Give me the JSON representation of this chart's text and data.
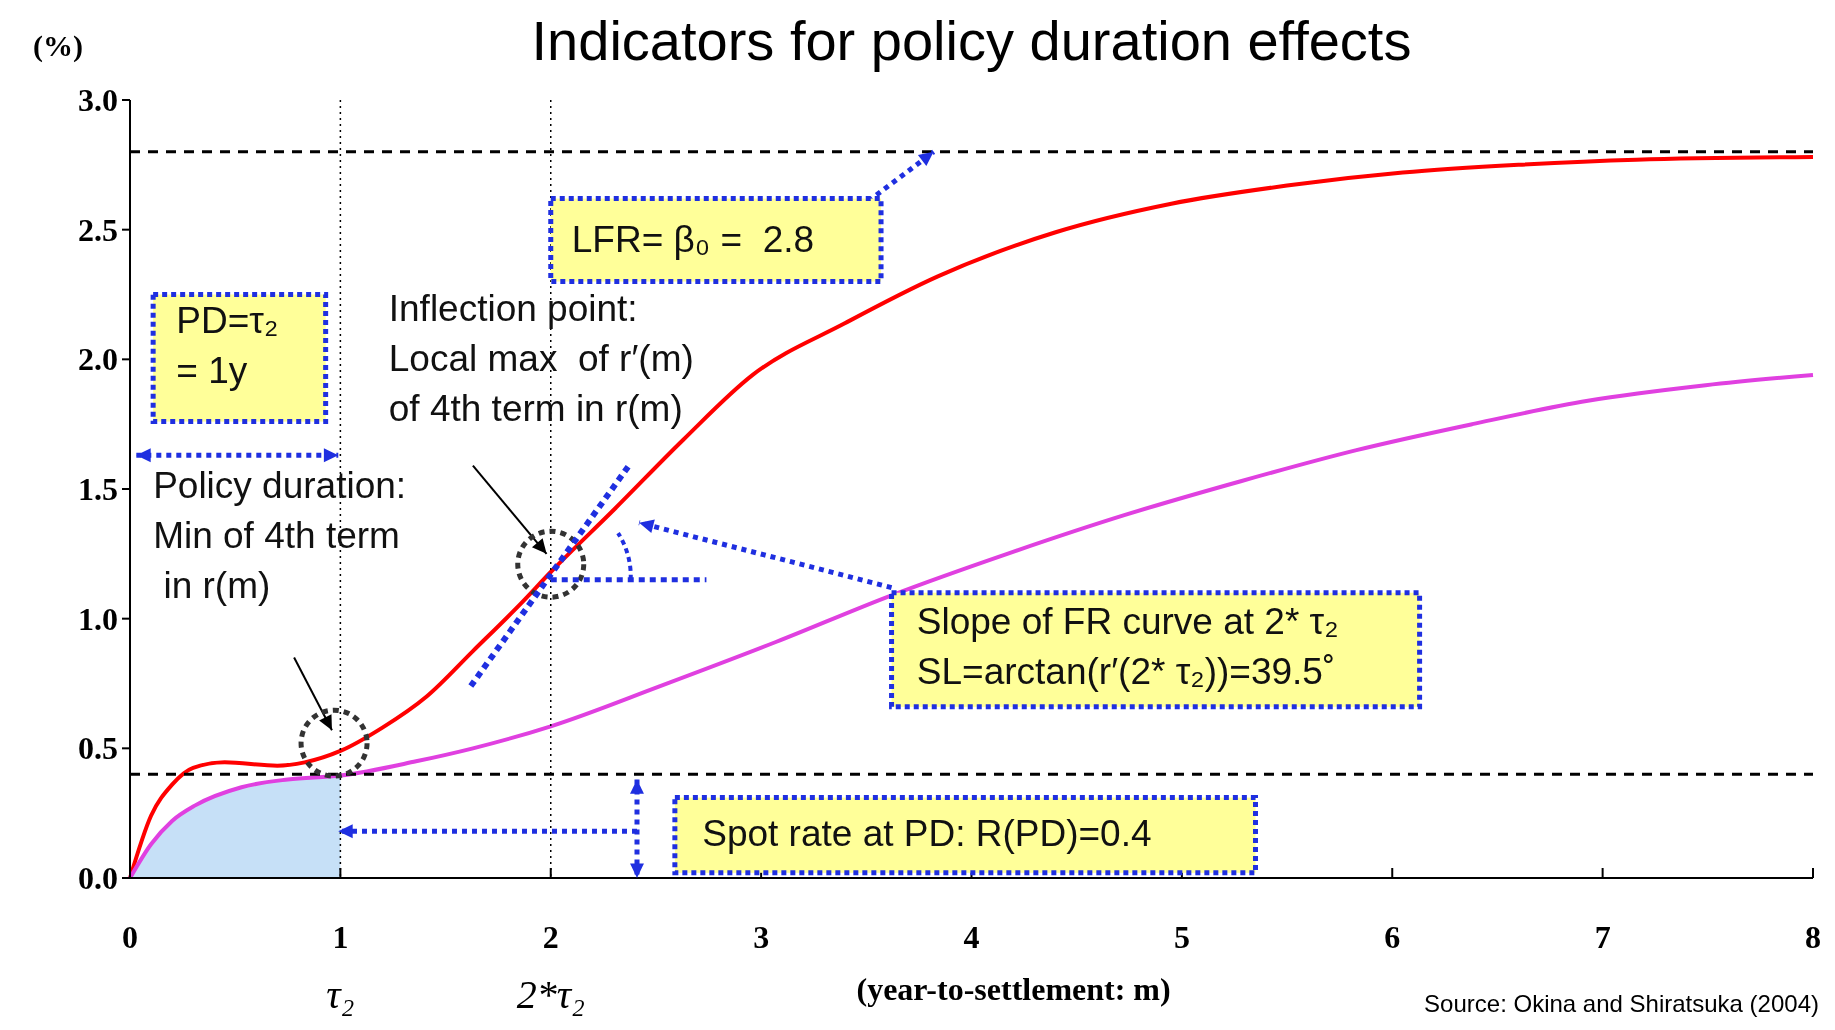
{
  "chart_data": {
    "type": "line",
    "title": "Indicators for policy duration effects",
    "xlabel": "(year-to-settlement: m)",
    "ylabel": "(%)",
    "xlim": [
      0,
      8
    ],
    "xticks": [
      0,
      1,
      2,
      3,
      4,
      5,
      6,
      7,
      8
    ],
    "ylim": [
      0,
      3
    ],
    "yticks": [
      {
        "value": 0,
        "label": "0.0"
      },
      0.5,
      {
        "value": 1,
        "label": "1.0"
      },
      1.5,
      {
        "value": 2,
        "label": "2.0"
      },
      2.5,
      {
        "value": 3,
        "label": "3.0"
      }
    ],
    "series": [
      {
        "type": "area",
        "color": "#c6e0f7",
        "x": [
          0,
          0.1,
          0.2,
          0.31,
          0.53,
          0.75,
          1.0
        ],
        "values": [
          0,
          0.13,
          0.22,
          0.28,
          0.35,
          0.38,
          0.395
        ]
      },
      {
        "color": "#ff0000",
        "x": [
          0,
          0.1,
          0.2,
          0.3,
          0.45,
          0.7,
          0.83,
          1.0,
          1.2,
          1.41,
          1.63,
          1.86,
          2.0,
          2.3,
          2.63,
          2.96,
          3.4,
          3.84,
          4.4,
          4.95,
          5.5,
          6.05,
          6.6,
          7.16,
          8
        ],
        "values": [
          0,
          0.24,
          0.36,
          0.425,
          0.446,
          0.433,
          0.446,
          0.49,
          0.58,
          0.7,
          0.875,
          1.06,
          1.18,
          1.42,
          1.69,
          1.94,
          2.14,
          2.32,
          2.49,
          2.6,
          2.67,
          2.72,
          2.75,
          2.77,
          2.78
        ]
      },
      {
        "color": "#e040e0",
        "x": [
          0,
          0.1,
          0.2,
          0.31,
          0.53,
          0.75,
          1.0,
          1.36,
          1.63,
          2.0,
          2.52,
          3.07,
          3.62,
          4.17,
          4.73,
          5.28,
          5.83,
          6.38,
          6.93,
          7.49,
          8
        ],
        "values": [
          0,
          0.13,
          0.22,
          0.28,
          0.35,
          0.38,
          0.395,
          0.45,
          0.5,
          0.585,
          0.74,
          0.91,
          1.09,
          1.25,
          1.4,
          1.53,
          1.65,
          1.75,
          1.84,
          1.9,
          1.94
        ]
      }
    ],
    "ref_lines": [
      {
        "axis": "y",
        "value": 2.8,
        "color": "#000000",
        "line_style": "dashed"
      },
      {
        "axis": "y",
        "value": 0.4,
        "color": "#000000",
        "line_style": "dashed"
      },
      {
        "axis": "x",
        "value": 1,
        "label": "τ₂",
        "color": "#000000",
        "line_style": "dotted"
      },
      {
        "axis": "x",
        "value": 2,
        "label": "2*τ₂",
        "color": "#000000",
        "line_style": "dotted"
      }
    ],
    "annotations": [
      "LFR= β₀ =  2.8",
      "PD=τ₂\n= 1y",
      "Inflection point:\nLocal max  of r′(m)\nof 4th term in r(m)",
      "Policy duration:\nMin of 4th term\n in r(m)",
      "Slope of FR curve at 2* τ₂\nSL=arctan(r′(2* τ₂))=39.5˚",
      "Spot rate at PD: R(PD)=0.4",
      "Source: Okina and Shiratsuka (2004)"
    ]
  }
}
